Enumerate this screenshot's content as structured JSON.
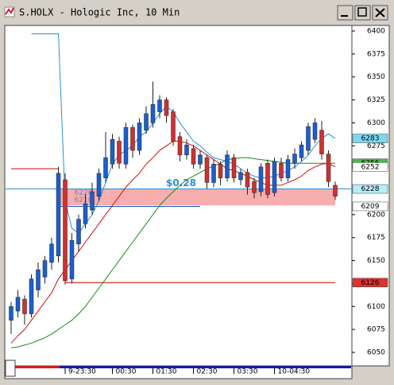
{
  "chart_data": {
    "type": "candlestick",
    "title": "S.HOLX - Hologic Inc, 10 Min",
    "up_color": "#1a5fd0",
    "down_color": "#d03030",
    "open": [
      6085,
      6095,
      6108,
      6092,
      6118,
      6132,
      6148,
      6155,
      6238,
      6130,
      6168,
      6190,
      6205,
      6220,
      6240,
      6255,
      6280,
      6255,
      6295,
      6270,
      6292,
      6300,
      6312,
      6325,
      6312,
      6285,
      6265,
      6272,
      6255,
      6262,
      6235,
      6255,
      6240,
      6262,
      6238,
      6246,
      6236,
      6225,
      6256,
      6224,
      6256,
      6240,
      6256,
      6262,
      6270,
      6282,
      6292,
      6266,
      6232
    ],
    "close": [
      6100,
      6110,
      6092,
      6130,
      6140,
      6150,
      6168,
      6245,
      6128,
      6172,
      6195,
      6212,
      6225,
      6245,
      6262,
      6282,
      6256,
      6295,
      6270,
      6300,
      6310,
      6320,
      6325,
      6308,
      6280,
      6265,
      6276,
      6255,
      6265,
      6235,
      6255,
      6240,
      6265,
      6240,
      6246,
      6230,
      6224,
      6252,
      6222,
      6258,
      6240,
      6260,
      6266,
      6276,
      6296,
      6300,
      6266,
      6236,
      6220
    ],
    "high": [
      6105,
      6118,
      6112,
      6135,
      6148,
      6155,
      6175,
      6252,
      6245,
      6180,
      6200,
      6222,
      6235,
      6250,
      6290,
      6288,
      6285,
      6300,
      6298,
      6305,
      6318,
      6345,
      6330,
      6328,
      6315,
      6290,
      6282,
      6276,
      6270,
      6265,
      6260,
      6258,
      6270,
      6266,
      6250,
      6250,
      6240,
      6256,
      6260,
      6262,
      6262,
      6265,
      6272,
      6280,
      6300,
      6305,
      6302,
      6270,
      6236
    ],
    "low": [
      6070,
      6088,
      6080,
      6088,
      6110,
      6125,
      6140,
      6148,
      6124,
      6125,
      6160,
      6185,
      6200,
      6215,
      6235,
      6250,
      6250,
      6250,
      6262,
      6265,
      6288,
      6295,
      6305,
      6300,
      6275,
      6258,
      6260,
      6250,
      6250,
      6228,
      6230,
      6232,
      6236,
      6235,
      6232,
      6222,
      6218,
      6220,
      6218,
      6220,
      6236,
      6236,
      6250,
      6258,
      6265,
      6278,
      6260,
      6230,
      6216
    ],
    "lines": [
      {
        "color": "#2a8fd8",
        "values": [
          null,
          null,
          null,
          6397,
          6397,
          6397,
          6397,
          6397,
          6215,
          6185,
          6180,
          6190,
          6200,
          6215,
          6235,
          6255,
          6265,
          6270,
          6275,
          6285,
          6290,
          6300,
          6310,
          6318,
          6312,
          6300,
          6290,
          6280,
          6275,
          6268,
          6262,
          6260,
          6258,
          6255,
          6250,
          6245,
          6242,
          6240,
          6240,
          6242,
          6245,
          6248,
          6252,
          6258,
          6265,
          6275,
          6283,
          6288,
          6283
        ]
      },
      {
        "color": "#d01010",
        "values": [
          6060,
          6068,
          6075,
          6085,
          6095,
          6105,
          6115,
          6130,
          6140,
          6150,
          6160,
          6170,
          6180,
          6190,
          6200,
          6210,
          6220,
          6230,
          6238,
          6245,
          6255,
          6262,
          6270,
          6275,
          6280,
          6280,
          6278,
          6275,
          6270,
          6265,
          6260,
          6255,
          6250,
          6248,
          6245,
          6242,
          6238,
          6235,
          6232,
          6232,
          6232,
          6235,
          6238,
          6242,
          6248,
          6252,
          6255,
          6256,
          6252
        ]
      },
      {
        "color": "#1a8a1a",
        "values": [
          6055,
          6056,
          6058,
          6060,
          6063,
          6066,
          6070,
          6075,
          6080,
          6085,
          6092,
          6100,
          6110,
          6120,
          6130,
          6140,
          6150,
          6160,
          6170,
          6180,
          6190,
          6200,
          6210,
          6218,
          6225,
          6232,
          6238,
          6242,
          6246,
          6250,
          6253,
          6256,
          6260,
          6261,
          6262,
          6262,
          6261,
          6260,
          6259,
          6258,
          6257,
          6256,
          6256,
          6256,
          6256,
          6256,
          6256,
          6256,
          6256
        ]
      }
    ],
    "levels": [
      {
        "value": 6250,
        "color": "#cc0000",
        "from": 0,
        "to": 7
      },
      {
        "value": 6126,
        "color": "#cc0000",
        "from": 8,
        "to": 48
      },
      {
        "value": 6228,
        "color": "#2a8fd8"
      },
      {
        "value": 6209,
        "color": "#1a5fd0",
        "from": 7,
        "to": 28
      }
    ],
    "zone": {
      "high": 6228,
      "low": 6210,
      "from": 7,
      "to": 48,
      "color": "#f4a0a0",
      "label": "$0.28"
    },
    "price_tags": [
      {
        "value": 6283,
        "color": "#7fd8f0"
      },
      {
        "value": 6256,
        "color": "#40c040"
      },
      {
        "value": 6252,
        "color": "#ffffff"
      },
      {
        "value": 6228,
        "color": "#b8ecf8"
      },
      {
        "value": 6209,
        "color": "#ffffff"
      },
      {
        "value": 6126,
        "color": "#e03030"
      }
    ],
    "ylim": [
      6050,
      6400
    ],
    "yticks": [
      6050,
      6075,
      6100,
      6125,
      6150,
      6175,
      6200,
      6275,
      6300,
      6325,
      6350,
      6375,
      6400
    ],
    "xticks": [
      {
        "value": 8,
        "label": "9-23:30"
      },
      {
        "value": 15,
        "label": "00:30"
      },
      {
        "value": 21,
        "label": "01:30"
      },
      {
        "value": 27,
        "label": "02:30"
      },
      {
        "value": 33,
        "label": "03:30"
      },
      {
        "value": 39,
        "label": "10-04:30"
      }
    ]
  }
}
